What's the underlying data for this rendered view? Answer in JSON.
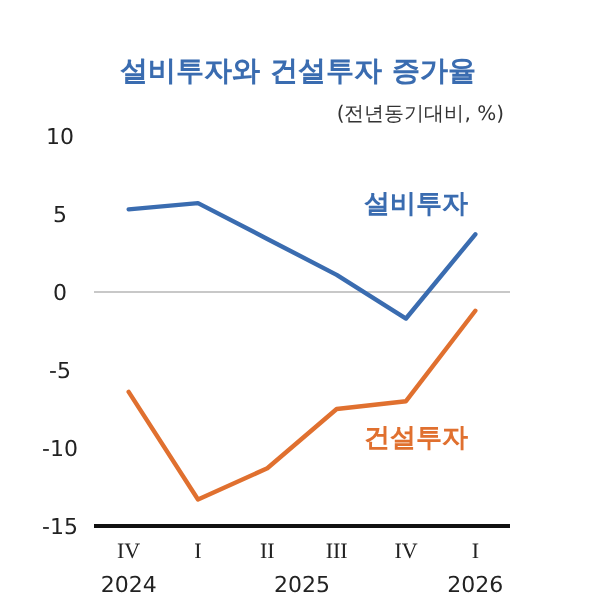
{
  "chart_data": {
    "type": "line",
    "title": "설비투자와 건설투자 증가율",
    "subtitle": "(전년동기대비, %)",
    "categories": [
      "IV",
      "I",
      "II",
      "III",
      "IV",
      "I"
    ],
    "annotations": [
      "2024",
      "2025",
      "2026"
    ],
    "series": [
      {
        "name": "설비투자",
        "color": "#3a6cb0",
        "values": [
          5.3,
          5.7,
          3.4,
          1.1,
          -1.7,
          3.7
        ]
      },
      {
        "name": "건설투자",
        "color": "#e0702f",
        "values": [
          -6.4,
          -13.3,
          -11.3,
          -7.5,
          -7.0,
          -1.2
        ]
      }
    ],
    "ylim": [
      -15,
      10
    ],
    "yticks": [
      {
        "value": -15,
        "label": "-15"
      },
      {
        "value": -10,
        "label": "-10"
      },
      {
        "value": -5,
        "label": "-5"
      },
      0,
      5,
      10
    ],
    "ref_lines": [
      {
        "axis": "y",
        "value": 0,
        "color": "#c8c8c8"
      }
    ],
    "marker": "none",
    "line_style": "solid"
  }
}
